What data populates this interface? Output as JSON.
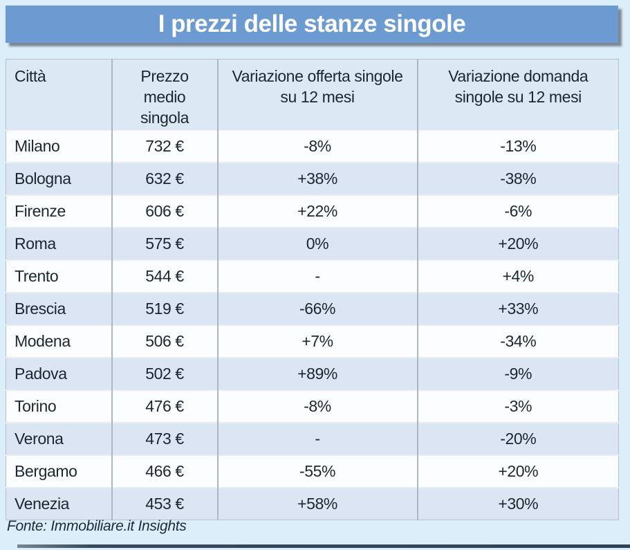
{
  "title_bar": {
    "title": "I prezzi delle stanze singole"
  },
  "footer": {
    "source": "Fonte: Immobiliare.it Insights"
  },
  "colors": {
    "page_bg": "#ddeefb",
    "title_bar_bg": "#6c9bd1",
    "title_text": "#ffffff",
    "header_bg": "#dce8f3",
    "row_bg": "#fbfdff",
    "row_alt_bg": "#dbe5f3",
    "grid_vertical": "#adb7c0",
    "grid_horizontal": "#e8edf2",
    "text": "#1c2630",
    "bottom_bar": "#37495c"
  },
  "chart_data": {
    "type": "table",
    "title": "I prezzi delle stanze singole",
    "columns": [
      "Città",
      "Prezzo medio singola",
      "Variazione offerta singole su 12 mesi",
      "Variazione domanda singole su 12 mesi"
    ],
    "rows": [
      [
        "Milano",
        "732 €",
        "-8%",
        "-13%"
      ],
      [
        "Bologna",
        "632 €",
        "+38%",
        "-38%"
      ],
      [
        "Firenze",
        "606 €",
        "+22%",
        "-6%"
      ],
      [
        "Roma",
        "575 €",
        "0%",
        "+20%"
      ],
      [
        "Trento",
        "544 €",
        "-",
        "+4%"
      ],
      [
        "Brescia",
        "519 €",
        "-66%",
        "+33%"
      ],
      [
        "Modena",
        "506 €",
        "+7%",
        "-34%"
      ],
      [
        "Padova",
        "502 €",
        "+89%",
        "-9%"
      ],
      [
        "Torino",
        "476 €",
        "-8%",
        "-3%"
      ],
      [
        "Verona",
        "473 €",
        "-",
        "-20%"
      ],
      [
        "Bergamo",
        "466 €",
        "-55%",
        "+20%"
      ],
      [
        "Venezia",
        "453 €",
        "+58%",
        "+30%"
      ]
    ],
    "source": "Fonte: Immobiliare.it Insights",
    "layout": {
      "header_align": [
        "left",
        "center",
        "center",
        "center"
      ],
      "alternating_rows": true,
      "first_row_style": "light"
    }
  }
}
